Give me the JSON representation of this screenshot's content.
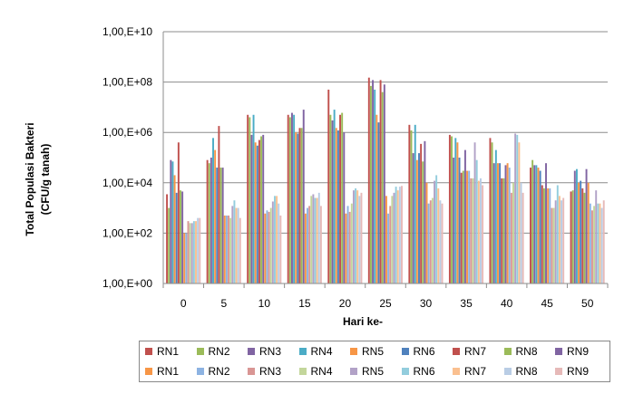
{
  "chart_data": {
    "type": "bar",
    "title": "",
    "xlabel": "Hari ke-",
    "ylabel": "Total Populasi Bakteri (CFU/g tanah)",
    "ylabel_lines": [
      "Total Populasi Bakteri",
      "(CFU/g tanah)"
    ],
    "yscale": "log",
    "ylim": [
      1,
      10000000000
    ],
    "yticks": [
      1,
      100,
      10000,
      1000000,
      100000000,
      10000000000
    ],
    "ytick_labels": [
      "1,00,E+00",
      "1,00,E+02",
      "1,00,E+04",
      "1,00,E+06",
      "1,00,E+08",
      "1,00,E+10"
    ],
    "grid": "horizontal",
    "legend_position": "bottom",
    "categories": [
      "0",
      "5",
      "10",
      "15",
      "20",
      "25",
      "30",
      "35",
      "40",
      "45",
      "50"
    ],
    "series": [
      {
        "name": "RN1",
        "color": "#c0504d",
        "values": [
          3500,
          80000,
          5000000,
          5000000,
          50000000,
          150000000,
          2000000,
          800000,
          600000,
          40000,
          4500
        ]
      },
      {
        "name": "RN2",
        "color": "#9bbb59",
        "values": [
          1000,
          60000,
          4000000,
          4000000,
          5000000,
          70000000,
          1200000,
          700000,
          400000,
          80000,
          5000
        ]
      },
      {
        "name": "RN3",
        "color": "#8064a2",
        "values": [
          80000,
          100000,
          800000,
          6000000,
          3000000,
          120000000,
          150000,
          100000,
          60000,
          50000,
          30000
        ]
      },
      {
        "name": "RN4",
        "color": "#4bacc6",
        "values": [
          70000,
          600000,
          5000000,
          5000000,
          8000000,
          50000000,
          2000000,
          600000,
          200000,
          50000,
          35000
        ]
      },
      {
        "name": "RN5",
        "color": "#f79646",
        "values": [
          20000,
          200000,
          400000,
          1000000,
          1500000,
          5000000,
          80000,
          400000,
          60000,
          40000,
          10000
        ]
      },
      {
        "name": "RN6",
        "color": "#4f81bd",
        "values": [
          4000,
          40000,
          300000,
          900000,
          1200000,
          2500000,
          150000,
          100000,
          60000,
          30000,
          12000
        ]
      },
      {
        "name": "RN7",
        "color": "#c0504d",
        "values": [
          400000,
          1800000,
          500000,
          1500000,
          5000000,
          120000000,
          350000,
          25000,
          15000,
          8000,
          6000
        ]
      },
      {
        "name": "RN8",
        "color": "#9bbb59",
        "values": [
          5000,
          40000,
          700000,
          1500000,
          6000000,
          40000000,
          70000,
          30000,
          15000,
          6000,
          4000
        ]
      },
      {
        "name": "RN9",
        "color": "#8064a2",
        "values": [
          4500,
          40000,
          800000,
          8000000,
          1000000,
          80000000,
          450000,
          200000,
          50000,
          60000,
          35000
        ]
      },
      {
        "name": "RN1",
        "color": "#f79646",
        "values": [
          100,
          500,
          600,
          600,
          600,
          3000,
          10000,
          30000,
          60000,
          6000,
          10000
        ]
      },
      {
        "name": "RN2",
        "color": "#8db3e2",
        "values": [
          100,
          500,
          800,
          1000,
          1200,
          600,
          1500,
          30000,
          40000,
          6000,
          1500
        ]
      },
      {
        "name": "RN3",
        "color": "#d99694",
        "values": [
          300,
          500,
          700,
          1200,
          700,
          1200,
          2000,
          15000,
          4000,
          1000,
          800
        ]
      },
      {
        "name": "RN4",
        "color": "#c3d69b",
        "values": [
          250,
          400,
          1000,
          3000,
          1500,
          3000,
          2500,
          15000,
          10000,
          1000,
          1200
        ]
      },
      {
        "name": "RN5",
        "color": "#b2a2c7",
        "values": [
          250,
          1200,
          1800,
          3500,
          5000,
          4000,
          12000,
          400000,
          900000,
          2000,
          5000
        ]
      },
      {
        "name": "RN6",
        "color": "#93cddd",
        "values": [
          300,
          2000,
          3000,
          2500,
          6000,
          7000,
          20000,
          80000,
          800000,
          8000,
          1500
        ]
      },
      {
        "name": "RN7",
        "color": "#fac090",
        "values": [
          300,
          1000,
          3000,
          2500,
          5000,
          5000,
          6000,
          12000,
          400000,
          3000,
          1500
        ]
      },
      {
        "name": "RN8",
        "color": "#b9cde5",
        "values": [
          400,
          1000,
          1500,
          4000,
          3000,
          7000,
          2000,
          15000,
          10000,
          2000,
          1000
        ]
      },
      {
        "name": "RN9",
        "color": "#e6b9b8",
        "values": [
          400,
          400,
          500,
          1200,
          4000,
          7500,
          1500,
          8000,
          4000,
          2500,
          2000
        ]
      }
    ]
  }
}
